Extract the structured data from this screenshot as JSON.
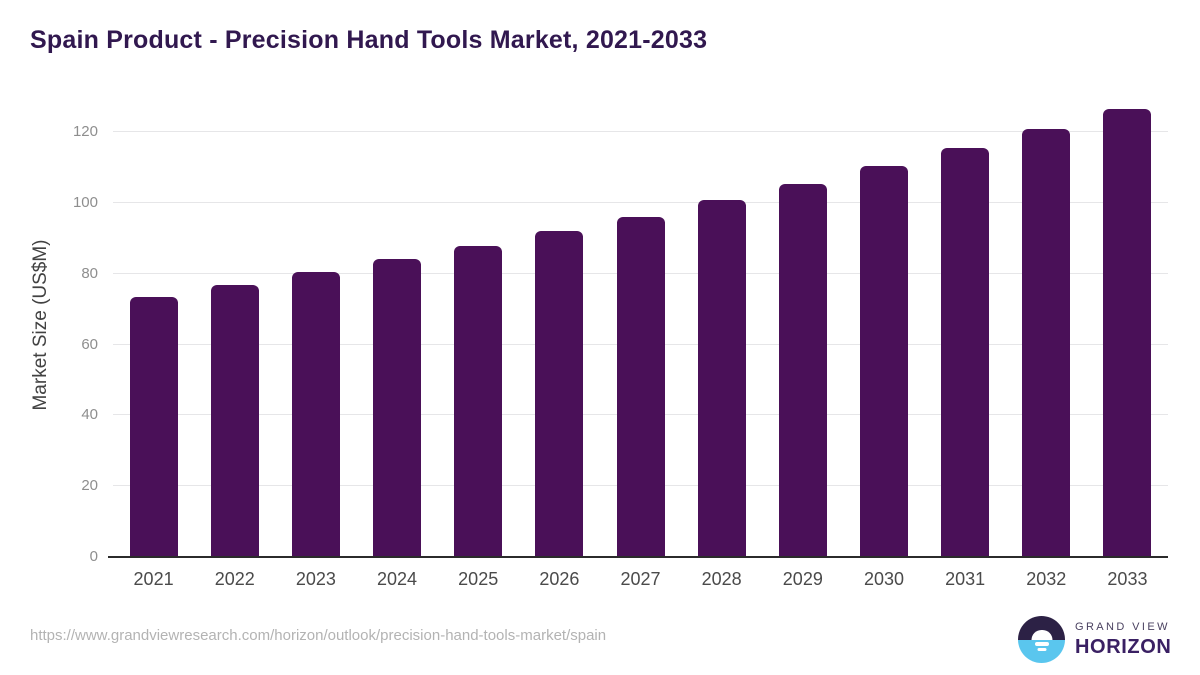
{
  "header": {
    "title": "Spain Product - Precision Hand Tools Market, 2021-2033"
  },
  "chart_data": {
    "type": "bar",
    "title": "Spain Product - Precision Hand Tools Market, 2021-2033",
    "categories": [
      "2021",
      "2022",
      "2023",
      "2024",
      "2025",
      "2026",
      "2027",
      "2028",
      "2029",
      "2030",
      "2031",
      "2032",
      "2033"
    ],
    "values": [
      73.4,
      76.8,
      80.5,
      84.1,
      87.9,
      92.0,
      96.2,
      100.8,
      105.4,
      110.5,
      115.7,
      121.0,
      126.7
    ],
    "xlabel": "",
    "ylabel": "Market Size (US$M)",
    "ylim": [
      0,
      130
    ],
    "yticks": [
      0,
      20,
      40,
      60,
      80,
      100,
      120
    ],
    "grid": true,
    "legend_position": "none",
    "bar_color": "#4a1058"
  },
  "footer": {
    "source_url": "https://www.grandviewresearch.com/horizon/outlook/precision-hand-tools-market/spain",
    "logo": {
      "line1": "GRAND VIEW",
      "line2": "HORIZON",
      "mark_icon": "sun-over-horizon-icon"
    }
  },
  "colors": {
    "bar": "#4a1058",
    "title_text": "#31184f",
    "gridline": "#e6e6e8",
    "axis_line": "#2b2b2b",
    "logo_dark": "#2c2145",
    "logo_blue": "#5ac6ee"
  }
}
